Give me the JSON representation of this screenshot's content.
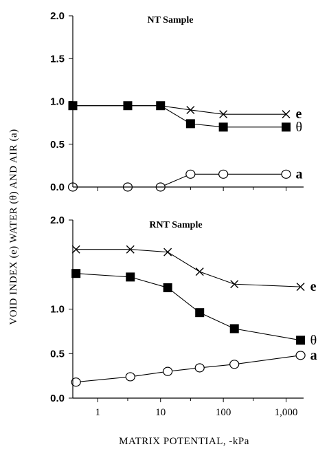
{
  "y_axis_label": "VOID INDEX (e) WATER (θ) AND AIR (a)",
  "x_axis_label": "MATRIX POTENTIAL, -kPa",
  "chart_data": [
    {
      "type": "line",
      "title": "NT Sample",
      "xscale": "log",
      "xlim": [
        0.4,
        1900
      ],
      "ylim": [
        0,
        2.0
      ],
      "yticks": [
        "2.0",
        "1.5",
        "1.0",
        "0.5",
        "0.0"
      ],
      "series": [
        {
          "name": "e",
          "marker": "x",
          "x": [
            0.4,
            3,
            10,
            30,
            100,
            1000
          ],
          "values": [
            0.95,
            0.95,
            0.95,
            0.9,
            0.85,
            0.85
          ]
        },
        {
          "name": "θ",
          "marker": "filled-square",
          "x": [
            0.4,
            3,
            10,
            30,
            100,
            1000
          ],
          "values": [
            0.95,
            0.95,
            0.95,
            0.74,
            0.7,
            0.7
          ]
        },
        {
          "name": "a",
          "marker": "open-circle",
          "x": [
            0.4,
            3,
            10,
            30,
            100,
            1000
          ],
          "values": [
            0.0,
            0.0,
            0.0,
            0.15,
            0.15,
            0.15
          ]
        }
      ]
    },
    {
      "type": "line",
      "title": "RNT Sample",
      "xscale": "log",
      "xlim": [
        0.4,
        1900
      ],
      "ylim": [
        0,
        2.0
      ],
      "yticks": [
        "2.0",
        "1.0",
        "0.5",
        "0.0"
      ],
      "xticks": [
        "1",
        "10",
        "100",
        "1,000"
      ],
      "series": [
        {
          "name": "e",
          "marker": "x",
          "x": [
            0.45,
            3.3,
            13,
            42,
            150,
            1700
          ],
          "values": [
            1.67,
            1.67,
            1.64,
            1.42,
            1.28,
            1.25
          ]
        },
        {
          "name": "θ",
          "marker": "filled-square",
          "x": [
            0.45,
            3.3,
            13,
            42,
            150,
            1700
          ],
          "values": [
            1.4,
            1.36,
            1.24,
            0.96,
            0.78,
            0.65
          ]
        },
        {
          "name": "a",
          "marker": "open-circle",
          "x": [
            0.45,
            3.3,
            13,
            42,
            150,
            1700
          ],
          "values": [
            0.18,
            0.24,
            0.3,
            0.34,
            0.38,
            0.48
          ]
        }
      ]
    }
  ]
}
